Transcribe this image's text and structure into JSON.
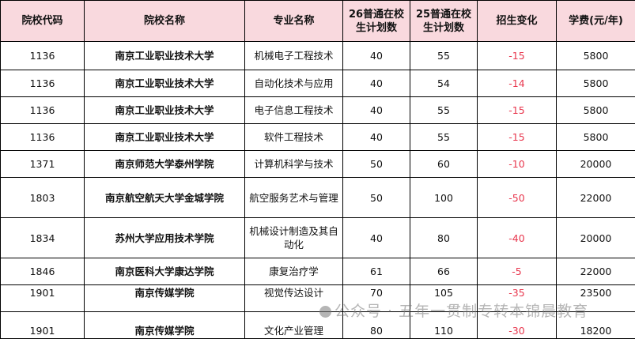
{
  "headers": [
    "院校代码",
    "院校名称",
    "专业名称",
    "26普通在校生计划数",
    "25普通在校生计划数",
    "招生变化",
    "学费(元/年)"
  ],
  "rows": [
    {
      "code": "1136",
      "school": "南京工业职业技术大学",
      "major": "机械电子工程技术",
      "plan26": "40",
      "plan25": "55",
      "change": "-15",
      "fee": "5800"
    },
    {
      "code": "1136",
      "school": "南京工业职业技术大学",
      "major": "自动化技术与应用",
      "plan26": "40",
      "plan25": "54",
      "change": "-14",
      "fee": "5800"
    },
    {
      "code": "1136",
      "school": "南京工业职业技术大学",
      "major": "电子信息工程技术",
      "plan26": "40",
      "plan25": "55",
      "change": "-15",
      "fee": "5800"
    },
    {
      "code": "1136",
      "school": "南京工业职业技术大学",
      "major": "软件工程技术",
      "plan26": "40",
      "plan25": "55",
      "change": "-15",
      "fee": "5800"
    },
    {
      "code": "1371",
      "school": "南京师范大学泰州学院",
      "major": "计算机科学与技术",
      "plan26": "50",
      "plan25": "60",
      "change": "-10",
      "fee": "20000"
    },
    {
      "code": "1803",
      "school": "南京航空航天大学金城学院",
      "major": "航空服务艺术与管理",
      "plan26": "50",
      "plan25": "100",
      "change": "-50",
      "fee": "22000"
    },
    {
      "code": "1834",
      "school": "苏州大学应用技术学院",
      "major": "机械设计制造及其自动化",
      "plan26": "40",
      "plan25": "80",
      "change": "-40",
      "fee": "20000"
    },
    {
      "code": "1846",
      "school": "南京医科大学康达学院",
      "major": "康复治疗学",
      "plan26": "61",
      "plan25": "66",
      "change": "-5",
      "fee": "22000"
    },
    {
      "code": "1901",
      "school": "南京传媒学院",
      "major": "视觉传达设计",
      "plan26": "70",
      "plan25": "105",
      "change": "-35",
      "fee": "23500"
    },
    {
      "code": "1901",
      "school": "南京传媒学院",
      "major": "文化产业管理",
      "plan26": "80",
      "plan25": "110",
      "change": "-30",
      "fee": "18200"
    }
  ],
  "watermark": "公众号 · 五年一贯制专转本锦晨教育",
  "colors": {
    "header_bg": "#f9d9de",
    "change_text": "#e8364d"
  }
}
